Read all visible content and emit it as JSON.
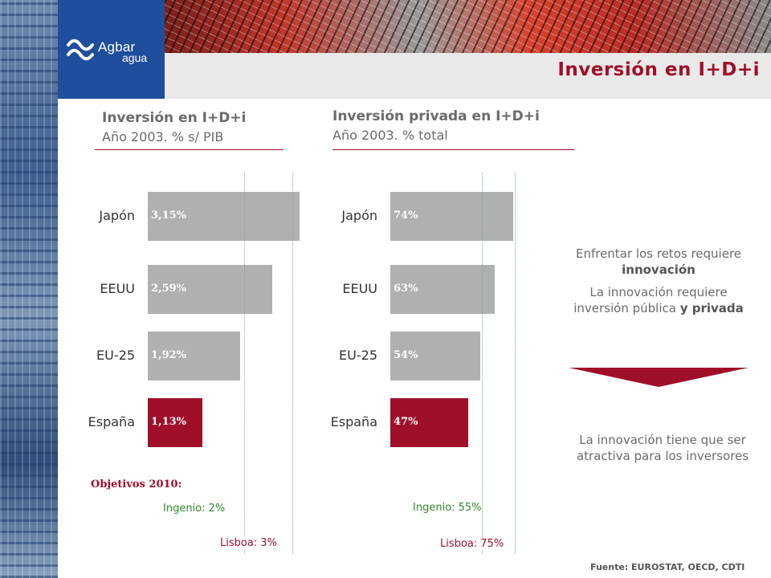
{
  "brand": {
    "name": "Agbar",
    "sub": "agua",
    "color": "#1f4e9c"
  },
  "page_title": "Inversión en I+D+i",
  "chart_data": [
    {
      "type": "bar",
      "orientation": "horizontal",
      "title": "Inversión en I+D+i",
      "subtitle": "Año 2003. % s/ PIB",
      "categories": [
        "Japón",
        "EEUU",
        "EU-25",
        "España"
      ],
      "values": [
        3.15,
        2.59,
        1.92,
        1.13
      ],
      "value_labels": [
        "3,15%",
        "2,59%",
        "1,92%",
        "1,13%"
      ],
      "xlim": [
        0,
        3.15
      ],
      "reference_lines": [
        {
          "label": "Ingenio: 2%",
          "value": 2,
          "color": "#2e8b2e"
        },
        {
          "label": "Lisboa: 3%",
          "value": 3,
          "color": "#a00f2a"
        }
      ],
      "colors": {
        "default": "#b0b0b0",
        "highlight": "#a00f2a",
        "highlight_category": "España"
      }
    },
    {
      "type": "bar",
      "orientation": "horizontal",
      "title": "Inversión privada en I+D+i",
      "subtitle": "Año 2003. % total",
      "categories": [
        "Japón",
        "EEUU",
        "EU-25",
        "España"
      ],
      "values": [
        74,
        63,
        54,
        47
      ],
      "value_labels": [
        "74%",
        "63%",
        "54%",
        "47%"
      ],
      "xlim": [
        0,
        74
      ],
      "reference_lines": [
        {
          "label": "Ingenio: 55%",
          "value": 55,
          "color": "#2e8b2e"
        },
        {
          "label": "Lisboa: 75%",
          "value": 75,
          "color": "#a00f2a"
        }
      ],
      "colors": {
        "default": "#b0b0b0",
        "highlight": "#a00f2a",
        "highlight_category": "España"
      }
    }
  ],
  "objectives_label": "Objetivos 2010:",
  "side": {
    "p1_a": "Enfrentar los retos requiere ",
    "p1_b": "innovación",
    "p2_a": "La innovación requiere inversión pública ",
    "p2_b": "y privada",
    "p3": "La innovación tiene que ser atractiva para los inversores",
    "arrow_color": "#a00f2a"
  },
  "source": "Fuente: EUROSTAT, OECD, CDTI"
}
